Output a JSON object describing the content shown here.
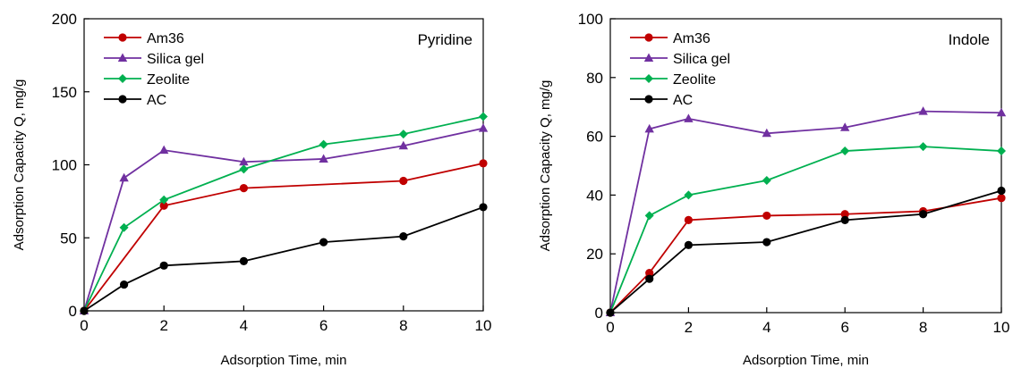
{
  "chart_data": [
    {
      "type": "line",
      "title": "Pyridine",
      "xlabel": "Adsorption Time, min",
      "ylabel": "Adsorption Capacity Q, mg/g",
      "xlim": [
        0,
        10
      ],
      "ylim": [
        0,
        200
      ],
      "xticks": [
        0,
        2,
        4,
        6,
        8,
        10
      ],
      "yticks": [
        0,
        50,
        100,
        150,
        200
      ],
      "legend_position": "top-left",
      "grid": false,
      "x": [
        0,
        1,
        2,
        4,
        6,
        8,
        10
      ],
      "series": [
        {
          "name": "Am36",
          "color": "#c00000",
          "marker": "circle",
          "x": [
            0,
            2,
            4,
            8,
            10
          ],
          "values": [
            0,
            72,
            84,
            89,
            101
          ]
        },
        {
          "name": "Silica gel",
          "color": "#7030a0",
          "marker": "triangle",
          "x": [
            0,
            1,
            2,
            4,
            6,
            8,
            10
          ],
          "values": [
            0,
            91,
            110,
            102,
            104,
            113,
            125
          ]
        },
        {
          "name": "Zeolite",
          "color": "#00b050",
          "marker": "diamond",
          "x": [
            0,
            1,
            2,
            4,
            6,
            8,
            10
          ],
          "values": [
            0,
            57,
            76,
            97,
            114,
            121,
            133
          ]
        },
        {
          "name": "AC",
          "color": "#000000",
          "marker": "circle",
          "x": [
            0,
            1,
            2,
            4,
            6,
            8,
            10
          ],
          "values": [
            0,
            18,
            31,
            34,
            47,
            51,
            71
          ]
        }
      ]
    },
    {
      "type": "line",
      "title": "Indole",
      "xlabel": "Adsorption Time, min",
      "ylabel": "Adsorption Capacity Q, mg/g",
      "xlim": [
        0,
        10
      ],
      "ylim": [
        0,
        100
      ],
      "xticks": [
        0,
        2,
        4,
        6,
        8,
        10
      ],
      "yticks": [
        0,
        20,
        40,
        60,
        80,
        100
      ],
      "legend_position": "top-left",
      "grid": false,
      "x": [
        0,
        1,
        2,
        4,
        6,
        8,
        10
      ],
      "series": [
        {
          "name": "Am36",
          "color": "#c00000",
          "marker": "circle",
          "x": [
            0,
            1,
            2,
            4,
            6,
            8,
            10
          ],
          "values": [
            0,
            13.5,
            31.5,
            33,
            33.5,
            34.5,
            39
          ]
        },
        {
          "name": "Silica gel",
          "color": "#7030a0",
          "marker": "triangle",
          "x": [
            0,
            1,
            2,
            4,
            6,
            8,
            10
          ],
          "values": [
            0,
            62.5,
            66,
            61,
            63,
            68.5,
            68
          ]
        },
        {
          "name": "Zeolite",
          "color": "#00b050",
          "marker": "diamond",
          "x": [
            0,
            1,
            2,
            4,
            6,
            8,
            10
          ],
          "values": [
            0,
            33,
            40,
            45,
            55,
            56.5,
            55
          ]
        },
        {
          "name": "AC",
          "color": "#000000",
          "marker": "circle",
          "x": [
            0,
            1,
            2,
            4,
            6,
            8,
            10
          ],
          "values": [
            0,
            11.5,
            23,
            24,
            31.5,
            33.5,
            41.5
          ]
        }
      ]
    }
  ]
}
